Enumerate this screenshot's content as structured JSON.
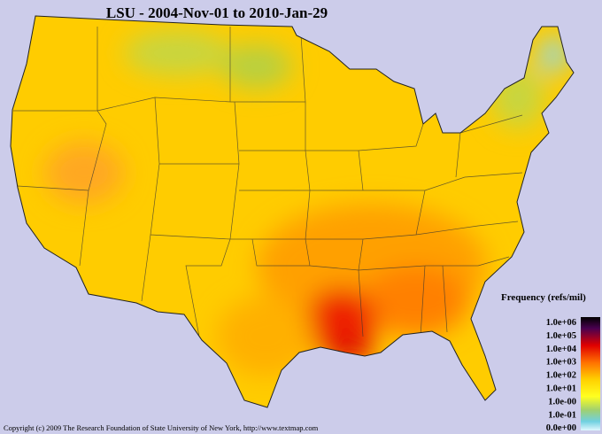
{
  "title": "LSU - 2004-Nov-01 to 2010-Jan-29",
  "legend": {
    "title": "Frequency (refs/mil)",
    "labels": [
      "1.0e+06",
      "1.0e+05",
      "1.0e+04",
      "1.0e+03",
      "1.0e+02",
      "1.0e+01",
      "1.0e-00",
      "1.0e-01",
      "0.0e+00"
    ]
  },
  "footer": "Copyright (c) 2009 The Research Foundation of State University of New York, http://www.textmap.com"
}
